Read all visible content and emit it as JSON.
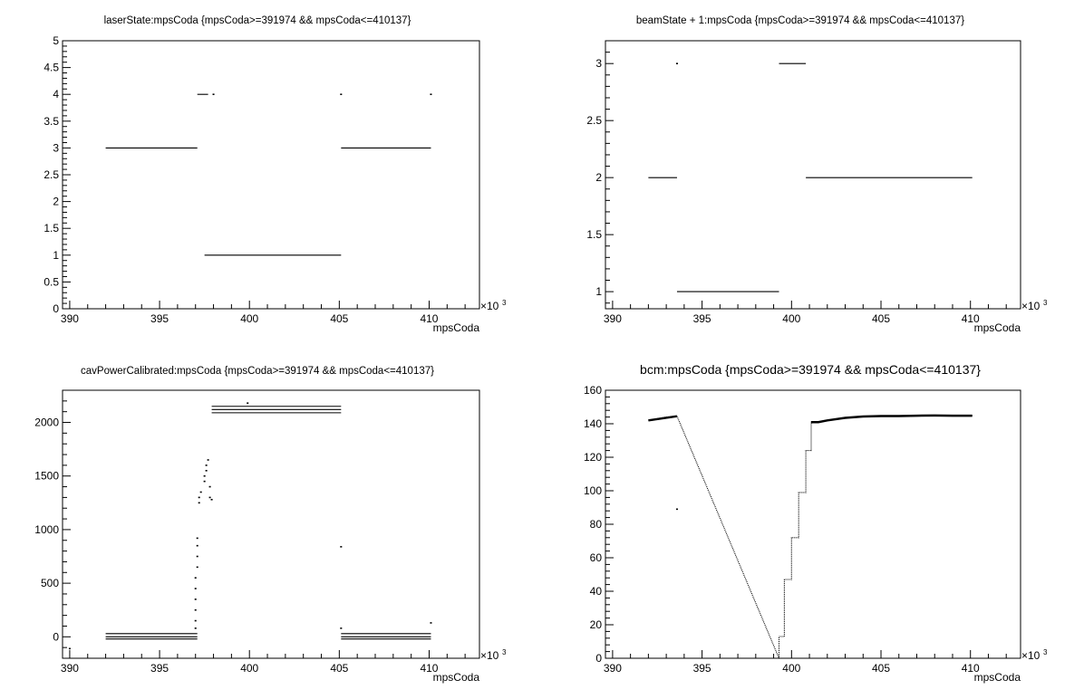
{
  "chart_data": [
    {
      "type": "scatter",
      "title": "laserState:mpsCoda {mpsCoda>=391974 && mpsCoda<=410137}",
      "xlabel": "mpsCoda",
      "ylabel": "laserState",
      "x_multiplier": "×10",
      "x_multiplier_exp": "3",
      "xlim": [
        389.6,
        412.8
      ],
      "ylim": [
        0,
        5
      ],
      "xticks": [
        "390",
        "395",
        "400",
        "405",
        "410"
      ],
      "yticks": [
        "0",
        "0.5",
        "1",
        "1.5",
        "2",
        "2.5",
        "3",
        "3.5",
        "4",
        "4.5",
        "5"
      ],
      "segments": [
        {
          "x": [
            392.0,
            397.1
          ],
          "y": 3
        },
        {
          "x": [
            397.1,
            397.7
          ],
          "y": 4
        },
        {
          "x": [
            397.5,
            405.1
          ],
          "y": 1
        },
        {
          "x": [
            405.1,
            410.1
          ],
          "y": 3
        }
      ],
      "points": [
        [
          398.0,
          4
        ],
        [
          405.1,
          4
        ],
        [
          410.1,
          4
        ]
      ]
    },
    {
      "type": "scatter",
      "title": "beamState + 1:mpsCoda {mpsCoda>=391974 && mpsCoda<=410137}",
      "xlabel": "mpsCoda",
      "ylabel": "beamState + 1",
      "x_multiplier": "×10",
      "x_multiplier_exp": "3",
      "xlim": [
        389.6,
        412.8
      ],
      "ylim": [
        0.85,
        3.2
      ],
      "xticks": [
        "390",
        "395",
        "400",
        "405",
        "410"
      ],
      "yticks": [
        "1",
        "1.5",
        "2",
        "2.5",
        "3"
      ],
      "segments": [
        {
          "x": [
            392.0,
            393.6
          ],
          "y": 2
        },
        {
          "x": [
            393.6,
            399.3
          ],
          "y": 1
        },
        {
          "x": [
            399.3,
            400.8
          ],
          "y": 3
        },
        {
          "x": [
            400.8,
            410.1
          ],
          "y": 2
        }
      ],
      "points": [
        [
          393.6,
          3
        ]
      ]
    },
    {
      "type": "scatter",
      "title": "cavPowerCalibrated:mpsCoda {mpsCoda>=391974 && mpsCoda<=410137}",
      "xlabel": "mpsCoda",
      "ylabel": "cavPowerCalibrated",
      "x_multiplier": "×10",
      "x_multiplier_exp": "3",
      "xlim": [
        389.6,
        412.8
      ],
      "ylim": [
        -200,
        2300
      ],
      "xticks": [
        "390",
        "395",
        "400",
        "405",
        "410"
      ],
      "yticks": [
        "0",
        "500",
        "1000",
        "1500",
        "2000"
      ],
      "segments": [
        {
          "x": [
            392.0,
            397.1
          ],
          "y": 30
        },
        {
          "x": [
            392.0,
            397.1
          ],
          "y": 0
        },
        {
          "x": [
            392.0,
            397.1
          ],
          "y": -20
        },
        {
          "x": [
            397.9,
            405.1
          ],
          "y": 2150
        },
        {
          "x": [
            397.9,
            405.1
          ],
          "y": 2120
        },
        {
          "x": [
            397.9,
            405.1
          ],
          "y": 2090
        },
        {
          "x": [
            405.1,
            410.1
          ],
          "y": 30
        },
        {
          "x": [
            405.1,
            410.1
          ],
          "y": 0
        },
        {
          "x": [
            405.1,
            410.1
          ],
          "y": -20
        }
      ],
      "points": [
        [
          397.0,
          80
        ],
        [
          397.0,
          150
        ],
        [
          397.0,
          250
        ],
        [
          397.0,
          350
        ],
        [
          397.0,
          450
        ],
        [
          397.0,
          550
        ],
        [
          397.1,
          650
        ],
        [
          397.1,
          750
        ],
        [
          397.1,
          850
        ],
        [
          397.1,
          920
        ],
        [
          397.2,
          1250
        ],
        [
          397.2,
          1300
        ],
        [
          397.3,
          1350
        ],
        [
          397.5,
          1450
        ],
        [
          397.5,
          1500
        ],
        [
          397.6,
          1550
        ],
        [
          397.6,
          1600
        ],
        [
          397.7,
          1650
        ],
        [
          397.8,
          1400
        ],
        [
          397.8,
          1300
        ],
        [
          397.9,
          1280
        ],
        [
          399.9,
          2180
        ],
        [
          405.1,
          840
        ],
        [
          405.1,
          80
        ],
        [
          410.1,
          130
        ],
        [
          390.0,
          -110
        ]
      ]
    },
    {
      "type": "scatter",
      "title": "bcm:mpsCoda {mpsCoda>=391974 && mpsCoda<=410137}",
      "xlabel": "mpsCoda",
      "ylabel": "bcm",
      "x_multiplier": "×10",
      "x_multiplier_exp": "3",
      "xlim": [
        389.6,
        412.8
      ],
      "ylim": [
        0,
        160
      ],
      "xticks": [
        "390",
        "395",
        "400",
        "405",
        "410"
      ],
      "yticks": [
        "0",
        "20",
        "40",
        "60",
        "80",
        "100",
        "120",
        "140",
        "160"
      ],
      "series_xy": [
        [
          392.0,
          142
        ],
        [
          392.5,
          143
        ],
        [
          393.0,
          144
        ],
        [
          393.6,
          144.5
        ],
        [
          399.3,
          0
        ],
        [
          399.3,
          13
        ],
        [
          399.6,
          13
        ],
        [
          399.6,
          47
        ],
        [
          400.0,
          47
        ],
        [
          400.0,
          72
        ],
        [
          400.4,
          72
        ],
        [
          400.4,
          99
        ],
        [
          400.8,
          99
        ],
        [
          400.8,
          124
        ],
        [
          401.1,
          124
        ],
        [
          401.1,
          141
        ],
        [
          401.5,
          141
        ],
        [
          402.0,
          142
        ],
        [
          403.0,
          143.5
        ],
        [
          404.0,
          144.3
        ],
        [
          405.0,
          144.6
        ],
        [
          406.0,
          144.6
        ],
        [
          407.0,
          144.8
        ],
        [
          408.0,
          144.9
        ],
        [
          409.0,
          144.8
        ],
        [
          410.1,
          144.8
        ]
      ],
      "points": [
        [
          393.6,
          89
        ]
      ]
    }
  ]
}
